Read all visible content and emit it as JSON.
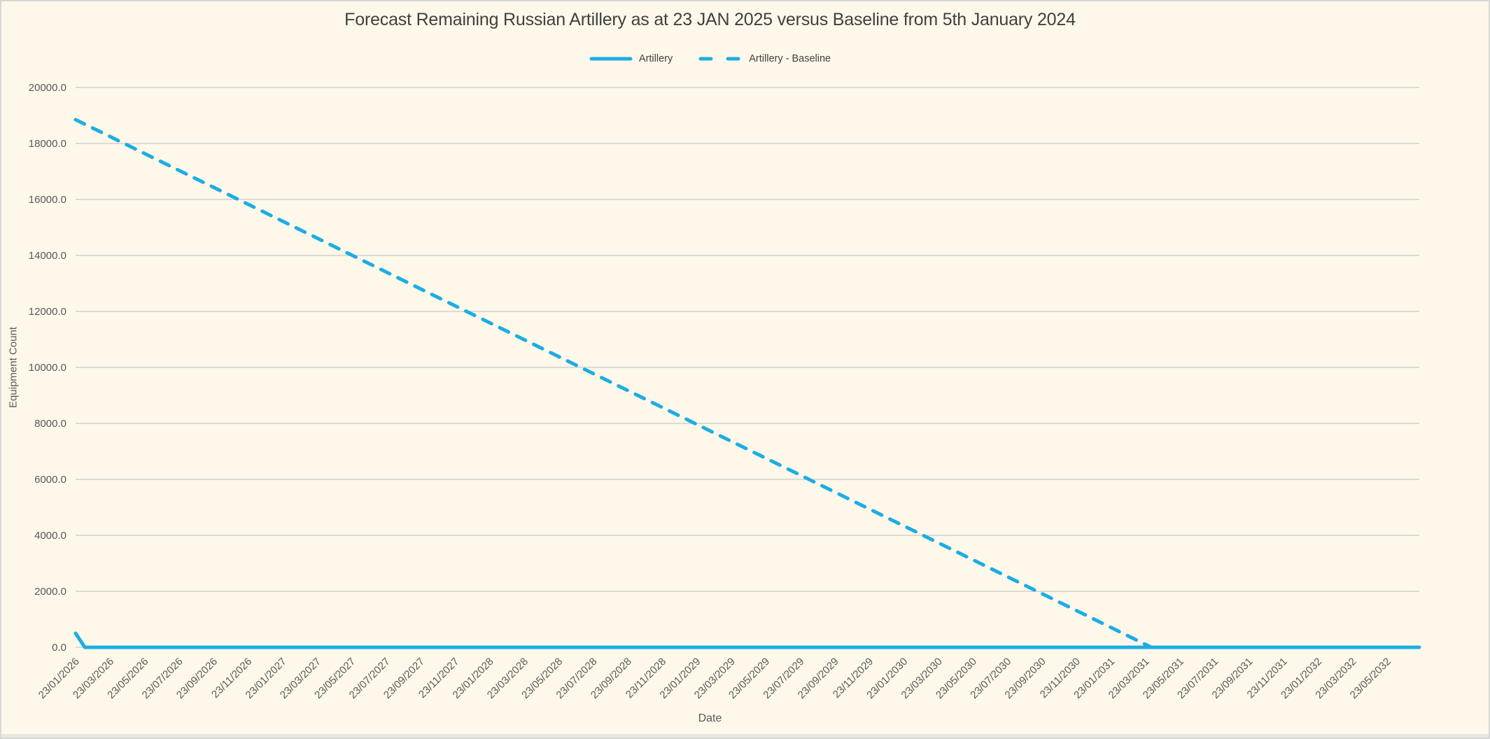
{
  "window": {
    "background": "#FDF8E9",
    "border_color": "#D7D7D7",
    "bottom_strip_color": "#E6E6E1"
  },
  "title": "Forecast Remaining Russian Artillery as at 23 JAN 2025 versus Baseline from 5th January 2024",
  "legend": {
    "items": [
      {
        "label": "Artillery",
        "line_style": "solid"
      },
      {
        "label": "Artillery - Baseline",
        "line_style": "dashed"
      }
    ]
  },
  "axes": {
    "x_title": "Date",
    "y_title": "Equipment Count"
  },
  "colors": {
    "series": "#1CADE4",
    "grid": "#DBDBD6",
    "title_text": "#404040",
    "axis_text": "#595959"
  },
  "chart_data": {
    "type": "line",
    "title": "Forecast Remaining Russian Artillery as at 23 JAN 2025 versus Baseline from 5th January 2024",
    "xlabel": "Date",
    "ylabel": "Equipment Count",
    "grid": "horizontal-only",
    "legend_position": "top-center",
    "ylim": [
      0,
      20000
    ],
    "y_tick_values": [
      0,
      2000,
      4000,
      6000,
      8000,
      10000,
      12000,
      14000,
      16000,
      18000,
      20000
    ],
    "y_tick_labels": [
      "0.0",
      "2000.0",
      "4000.0",
      "6000.0",
      "8000.0",
      "10000.0",
      "12000.0",
      "14000.0",
      "16000.0",
      "18000.0",
      "20000.0"
    ],
    "x_tick_labels": [
      "23/01/2026",
      "23/03/2026",
      "23/05/2026",
      "23/07/2026",
      "23/09/2026",
      "23/11/2026",
      "23/01/2027",
      "23/03/2027",
      "23/05/2027",
      "23/07/2027",
      "23/09/2027",
      "23/11/2027",
      "23/01/2028",
      "23/03/2028",
      "23/05/2028",
      "23/07/2028",
      "23/09/2028",
      "23/11/2028",
      "23/01/2029",
      "23/03/2029",
      "23/05/2029",
      "23/07/2029",
      "23/09/2029",
      "23/11/2029",
      "23/01/2030",
      "23/03/2030",
      "23/05/2030",
      "23/07/2030",
      "23/09/2030",
      "23/11/2030",
      "23/01/2031",
      "23/03/2031",
      "23/05/2031",
      "23/07/2031",
      "23/09/2031",
      "23/11/2031",
      "23/01/2032",
      "23/03/2032",
      "23/05/2032"
    ],
    "x_domain_tick_units": [
      0,
      38.93
    ],
    "series": [
      {
        "name": "Artillery",
        "line_style": "solid",
        "points_tick_value": [
          [
            0,
            500
          ],
          [
            0.27,
            0
          ],
          [
            38.93,
            0
          ]
        ],
        "note": "starts at ~500 on 23/01/2026, falls to 0 within weeks, flat at 0 thereafter"
      },
      {
        "name": "Artillery - Baseline",
        "line_style": "dashed",
        "points_tick_value": [
          [
            0,
            18850
          ],
          [
            31.17,
            0
          ]
        ],
        "note": "linear decline from ~18850 on 23/01/2026 to 0 near 23/03/2031, line ends at zero"
      }
    ]
  }
}
